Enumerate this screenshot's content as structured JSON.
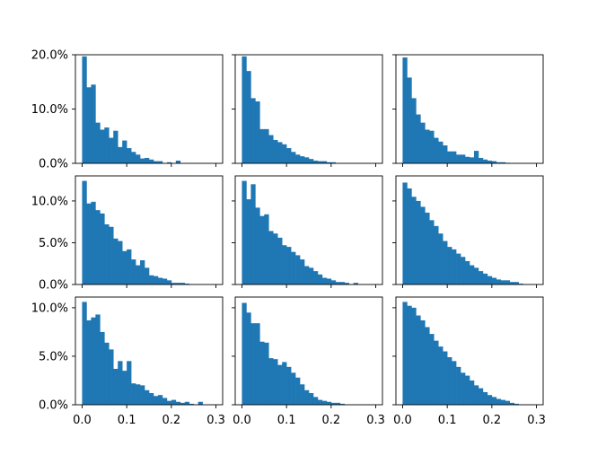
{
  "chart_data": {
    "type": "histogram-grid",
    "rows": 3,
    "cols": 3,
    "bar_color": "#1f77b4",
    "bin_width": 0.01,
    "bin_start": 0.0,
    "xlim": [
      -0.015,
      0.315
    ],
    "sharex": true,
    "sharey_by_row": true,
    "x_ticks": [
      0.0,
      0.1,
      0.2,
      0.3
    ],
    "x_tick_labels": [
      "0.0",
      "0.1",
      "0.2",
      "0.3"
    ],
    "row_axes": [
      {
        "ylim": [
          0,
          0.2
        ],
        "y_ticks": [
          0,
          0.1,
          0.2
        ],
        "y_tick_labels": [
          "0.0%",
          "10.0%",
          "20.0%"
        ]
      },
      {
        "ylim": [
          0,
          0.13
        ],
        "y_ticks": [
          0,
          0.05,
          0.1
        ],
        "y_tick_labels": [
          "0.0%",
          "5.0%",
          "10.0%"
        ]
      },
      {
        "ylim": [
          0,
          0.111
        ],
        "y_ticks": [
          0,
          0.05,
          0.1
        ],
        "y_tick_labels": [
          "0.0%",
          "5.0%",
          "10.0%"
        ]
      }
    ],
    "panels": [
      {
        "row": 0,
        "col": 0,
        "values": [
          0.197,
          0.14,
          0.145,
          0.075,
          0.062,
          0.066,
          0.047,
          0.06,
          0.03,
          0.042,
          0.028,
          0.021,
          0.016,
          0.009,
          0.01,
          0.007,
          0.004,
          0.004,
          0.0,
          0.002,
          0.0,
          0.005,
          0.0,
          0.0,
          0.0,
          0.0,
          0.0,
          0.0,
          0.0,
          0.0
        ]
      },
      {
        "row": 0,
        "col": 1,
        "values": [
          0.197,
          0.17,
          0.12,
          0.114,
          0.063,
          0.063,
          0.052,
          0.043,
          0.039,
          0.035,
          0.028,
          0.021,
          0.016,
          0.013,
          0.011,
          0.008,
          0.005,
          0.004,
          0.004,
          0.002,
          0.002,
          0.0,
          0.0,
          0.0,
          0.0,
          0.0,
          0.0,
          0.0,
          0.0,
          0.0
        ]
      },
      {
        "row": 0,
        "col": 2,
        "values": [
          0.195,
          0.158,
          0.12,
          0.09,
          0.075,
          0.062,
          0.06,
          0.047,
          0.04,
          0.033,
          0.022,
          0.022,
          0.016,
          0.016,
          0.012,
          0.011,
          0.023,
          0.01,
          0.007,
          0.005,
          0.004,
          0.002,
          0.002,
          0.001,
          0.0,
          0.0,
          0.0,
          0.0,
          0.0,
          0.0
        ]
      },
      {
        "row": 1,
        "col": 0,
        "values": [
          0.124,
          0.097,
          0.099,
          0.089,
          0.085,
          0.072,
          0.069,
          0.055,
          0.052,
          0.04,
          0.042,
          0.03,
          0.023,
          0.029,
          0.02,
          0.011,
          0.01,
          0.008,
          0.007,
          0.005,
          0.002,
          0.002,
          0.002,
          0.001,
          0.0,
          0.0,
          0.0,
          0.0,
          0.0,
          0.0
        ]
      },
      {
        "row": 1,
        "col": 1,
        "values": [
          0.124,
          0.102,
          0.12,
          0.092,
          0.082,
          0.084,
          0.064,
          0.061,
          0.056,
          0.047,
          0.045,
          0.039,
          0.035,
          0.03,
          0.022,
          0.02,
          0.016,
          0.012,
          0.008,
          0.007,
          0.005,
          0.003,
          0.003,
          0.002,
          0.0,
          0.002,
          0.0,
          0.0,
          0.0,
          0.0
        ]
      },
      {
        "row": 1,
        "col": 2,
        "values": [
          0.122,
          0.115,
          0.105,
          0.1,
          0.093,
          0.086,
          0.077,
          0.07,
          0.061,
          0.052,
          0.045,
          0.042,
          0.037,
          0.033,
          0.028,
          0.023,
          0.02,
          0.016,
          0.013,
          0.01,
          0.008,
          0.006,
          0.005,
          0.005,
          0.003,
          0.003,
          0.001,
          0.0,
          0.0,
          0.0
        ]
      },
      {
        "row": 2,
        "col": 0,
        "values": [
          0.106,
          0.087,
          0.09,
          0.093,
          0.075,
          0.064,
          0.057,
          0.037,
          0.045,
          0.035,
          0.045,
          0.022,
          0.021,
          0.02,
          0.015,
          0.012,
          0.009,
          0.01,
          0.007,
          0.004,
          0.005,
          0.003,
          0.002,
          0.003,
          0.001,
          0.0,
          0.003,
          0.0,
          0.0,
          0.0
        ]
      },
      {
        "row": 2,
        "col": 1,
        "values": [
          0.105,
          0.095,
          0.084,
          0.084,
          0.065,
          0.064,
          0.048,
          0.047,
          0.041,
          0.044,
          0.039,
          0.033,
          0.028,
          0.021,
          0.015,
          0.012,
          0.008,
          0.005,
          0.004,
          0.003,
          0.002,
          0.002,
          0.001,
          0.0,
          0.0,
          0.0,
          0.0,
          0.0,
          0.0,
          0.0
        ]
      },
      {
        "row": 2,
        "col": 2,
        "values": [
          0.106,
          0.102,
          0.1,
          0.092,
          0.087,
          0.08,
          0.073,
          0.066,
          0.06,
          0.055,
          0.049,
          0.045,
          0.039,
          0.033,
          0.03,
          0.025,
          0.02,
          0.017,
          0.013,
          0.01,
          0.008,
          0.006,
          0.005,
          0.004,
          0.002,
          0.001,
          0.0,
          0.0,
          0.0,
          0.0
        ]
      }
    ]
  }
}
